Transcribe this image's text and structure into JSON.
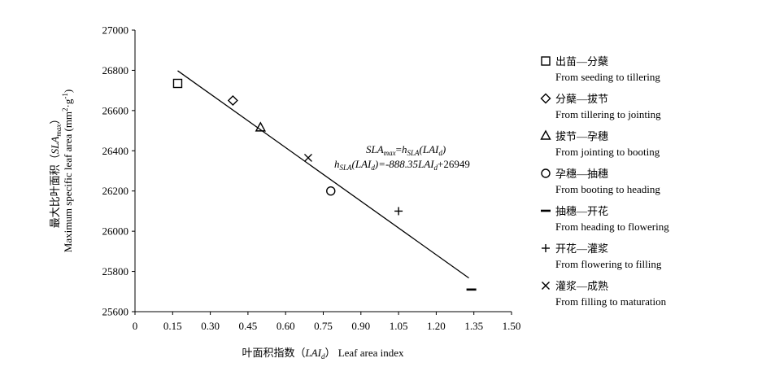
{
  "chart_data": {
    "type": "scatter",
    "xlabel": {
      "zh": "叶面积指数（",
      "var": "LAI",
      "sub": "d",
      "end": "） Leaf area index"
    },
    "ylabel": {
      "line1": {
        "zh": "最大比叶面积（",
        "var": "SLA",
        "sub": "max",
        "end": "）"
      },
      "line2": {
        "text": "Maximum specific leaf area (mm",
        "sup1": "2",
        "mid": "·g",
        "sup2": "-1",
        "end": ")"
      }
    },
    "xlim": [
      0,
      1.5
    ],
    "ylim": [
      25600,
      27000
    ],
    "x_ticks": [
      0,
      0.15,
      0.3,
      0.45,
      0.6,
      0.75,
      0.9,
      1.05,
      1.2,
      1.35,
      1.5
    ],
    "x_tick_labels": [
      "0",
      "0.15",
      "0.30",
      "0.45",
      "0.60",
      "0.75",
      "0.90",
      "1.05",
      "1.20",
      "1.35",
      "1.50"
    ],
    "y_ticks": [
      25600,
      25800,
      26000,
      26200,
      26400,
      26600,
      26800,
      27000
    ],
    "y_tick_labels": [
      "25600",
      "25800",
      "26000",
      "26200",
      "26400",
      "26600",
      "26800",
      "27000"
    ],
    "series": [
      {
        "name_zh": "出苗—分蘖",
        "name_en": "From seeding to tillering",
        "marker": "square",
        "x": 0.17,
        "y": 26735
      },
      {
        "name_zh": "分蘖—拔节",
        "name_en": "From tillering to jointing",
        "marker": "diamond",
        "x": 0.39,
        "y": 26650
      },
      {
        "name_zh": "拔节—孕穗",
        "name_en": "From jointing to booting",
        "marker": "triangle",
        "x": 0.5,
        "y": 26515
      },
      {
        "name_zh": "孕穗—抽穗",
        "name_en": "From booting to heading",
        "marker": "circle",
        "x": 0.78,
        "y": 26200
      },
      {
        "name_zh": "抽穗—开花",
        "name_en": "From heading to flowering",
        "marker": "dash",
        "x": 1.34,
        "y": 25710
      },
      {
        "name_zh": "开花—灌浆",
        "name_en": "From flowering to filling",
        "marker": "plus",
        "x": 1.05,
        "y": 26100
      },
      {
        "name_zh": "灌浆—成熟",
        "name_en": "From filling to maturation",
        "marker": "x",
        "x": 0.69,
        "y": 26365
      }
    ],
    "fit": {
      "slope": -888.35,
      "intercept": 26949,
      "x_start": 0.17,
      "x_end": 1.33
    },
    "equation": {
      "line1": {
        "a": "SLA",
        "a_sub": "max",
        "eq": "=",
        "b": "h",
        "b_sub": "SLA",
        "c": "(LAI",
        "c_sub": "d",
        "d": ")"
      },
      "line2": {
        "a": "h",
        "a_sub": "SLA",
        "b": "(LAI",
        "b_sub": "d",
        "c": ")=-888.35",
        "d": "LAI",
        "d_sub": "d",
        "e": "+26949"
      }
    },
    "grid": false,
    "legend_position": "right"
  }
}
